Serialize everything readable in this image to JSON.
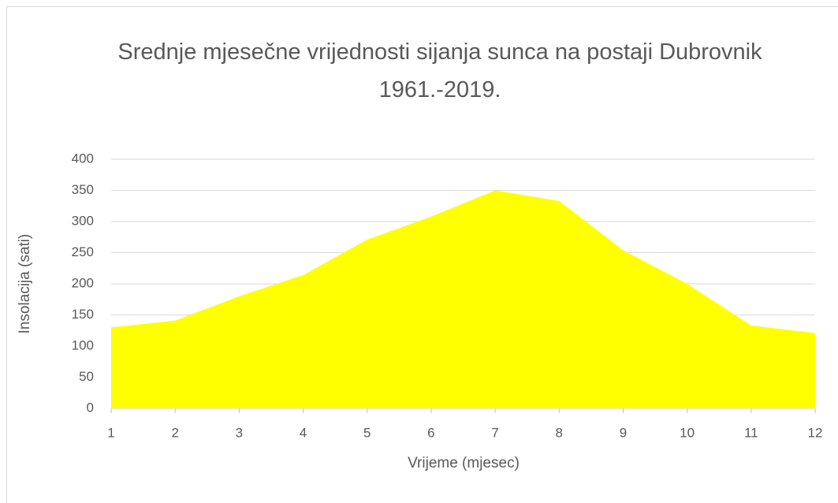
{
  "chart_data": {
    "type": "area",
    "title": "Srednje mjesečne vrijednosti sijanja sunca na postaji Dubrovnik 1961.-2019.",
    "x_label": "Vrijeme (mjesec)",
    "y_label": "Insolacija (sati)",
    "x": [
      1,
      2,
      3,
      4,
      5,
      6,
      7,
      8,
      9,
      10,
      11,
      12
    ],
    "values": [
      130,
      141,
      180,
      214,
      271,
      308,
      350,
      333,
      254,
      200,
      133,
      121
    ],
    "color": "#ffff00",
    "xlim": [
      1,
      12
    ],
    "xticks": [
      1,
      2,
      3,
      4,
      5,
      6,
      7,
      8,
      9,
      10,
      11,
      12
    ],
    "ylim": [
      0,
      400
    ],
    "yticks": [
      0,
      50,
      100,
      150,
      200,
      250,
      300,
      350,
      400
    ],
    "grid": true
  }
}
